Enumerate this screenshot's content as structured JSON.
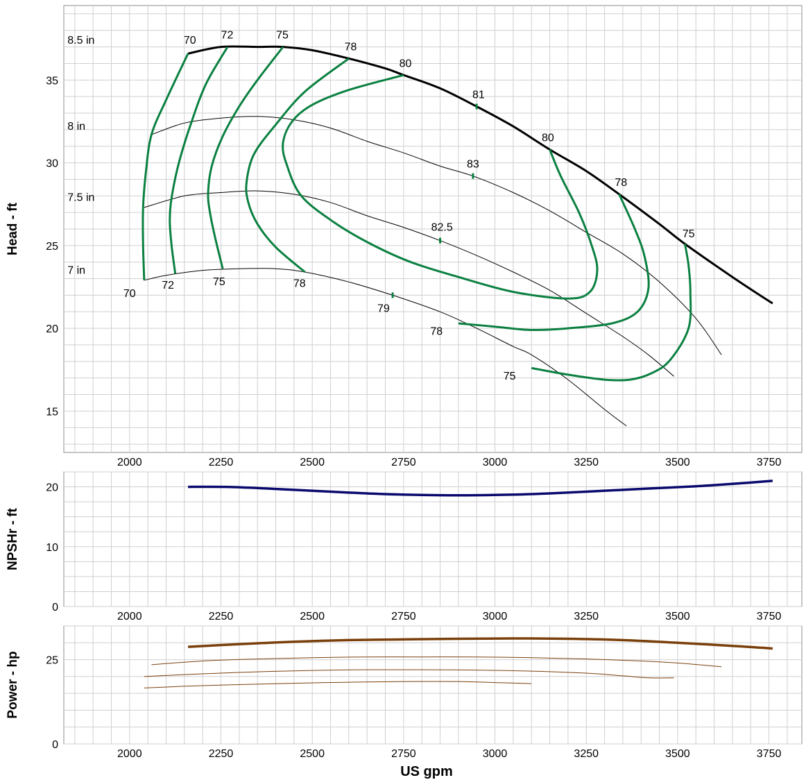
{
  "chart_data": [
    {
      "type": "line",
      "panel": "head",
      "ylabel": "Head - ft",
      "xlim": [
        1820,
        3840
      ],
      "ylim": [
        12.5,
        39.5
      ],
      "xticks": [
        2000,
        2250,
        2500,
        2750,
        3000,
        3250,
        3500,
        3750
      ],
      "yticks": [
        15,
        20,
        25,
        30,
        35
      ],
      "grid": true,
      "impeller_curves": [
        {
          "name": "8.5 in",
          "label_at": [
            1830,
            37.2
          ],
          "points": [
            [
              2160,
              36.6
            ],
            [
              2250,
              37.0
            ],
            [
              2350,
              37.0
            ],
            [
              2420,
              37.0
            ],
            [
              2500,
              36.8
            ],
            [
              2600,
              36.3
            ],
            [
              2700,
              35.7
            ],
            [
              2750,
              35.3
            ],
            [
              2850,
              34.5
            ],
            [
              2950,
              33.4
            ],
            [
              3050,
              32.2
            ],
            [
              3150,
              30.8
            ],
            [
              3250,
              29.5
            ],
            [
              3340,
              28.1
            ],
            [
              3450,
              26.3
            ],
            [
              3520,
              25.1
            ],
            [
              3650,
              23.1
            ],
            [
              3760,
              21.5
            ]
          ]
        },
        {
          "name": "8 in",
          "label_at": [
            1830,
            32.0
          ],
          "points": [
            [
              2060,
              31.7
            ],
            [
              2150,
              32.4
            ],
            [
              2250,
              32.7
            ],
            [
              2350,
              32.8
            ],
            [
              2450,
              32.6
            ],
            [
              2550,
              32.1
            ],
            [
              2650,
              31.3
            ],
            [
              2750,
              30.6
            ],
            [
              2850,
              29.8
            ],
            [
              2940,
              29.2
            ],
            [
              3050,
              28.2
            ],
            [
              3150,
              27.1
            ],
            [
              3250,
              25.8
            ],
            [
              3350,
              24.5
            ],
            [
              3450,
              22.8
            ],
            [
              3550,
              20.6
            ],
            [
              3620,
              18.4
            ]
          ]
        },
        {
          "name": "7.5 in",
          "label_at": [
            1830,
            27.7
          ],
          "points": [
            [
              2040,
              27.3
            ],
            [
              2150,
              28.0
            ],
            [
              2250,
              28.2
            ],
            [
              2350,
              28.3
            ],
            [
              2450,
              28.1
            ],
            [
              2550,
              27.6
            ],
            [
              2650,
              26.8
            ],
            [
              2750,
              26.1
            ],
            [
              2850,
              25.3
            ],
            [
              2950,
              24.4
            ],
            [
              3050,
              23.4
            ],
            [
              3150,
              22.3
            ],
            [
              3250,
              20.9
            ],
            [
              3350,
              19.5
            ],
            [
              3420,
              18.4
            ],
            [
              3490,
              17.1
            ]
          ]
        },
        {
          "name": "7 in",
          "label_at": [
            1830,
            23.3
          ],
          "points": [
            [
              2040,
              22.9
            ],
            [
              2100,
              23.2
            ],
            [
              2200,
              23.5
            ],
            [
              2300,
              23.6
            ],
            [
              2400,
              23.6
            ],
            [
              2480,
              23.4
            ],
            [
              2600,
              22.8
            ],
            [
              2720,
              22.0
            ],
            [
              2850,
              21.0
            ],
            [
              2950,
              20.0
            ],
            [
              3050,
              18.9
            ],
            [
              3100,
              18.4
            ],
            [
              3200,
              16.9
            ],
            [
              3300,
              15.1
            ],
            [
              3360,
              14.1
            ]
          ]
        }
      ],
      "efficiency_curves": [
        {
          "value": "70",
          "points": [
            [
              2040,
              22.9
            ],
            [
              2037,
              25.0
            ],
            [
              2037,
              27.3
            ],
            [
              2045,
              29.5
            ],
            [
              2060,
              31.7
            ],
            [
              2100,
              33.8
            ],
            [
              2160,
              36.6
            ]
          ]
        },
        {
          "value": "72",
          "points": [
            [
              2125,
              23.3
            ],
            [
              2115,
              25.0
            ],
            [
              2110,
              26.5
            ],
            [
              2115,
              27.9
            ],
            [
              2135,
              30.0
            ],
            [
              2170,
              32.5
            ],
            [
              2210,
              34.8
            ],
            [
              2268,
              37.0
            ]
          ]
        },
        {
          "value": "75",
          "points": [
            [
              2255,
              23.6
            ],
            [
              2235,
              25.4
            ],
            [
              2220,
              27.0
            ],
            [
              2215,
              28.2
            ],
            [
              2225,
              29.8
            ],
            [
              2255,
              31.6
            ],
            [
              2300,
              33.4
            ],
            [
              2350,
              35.0
            ],
            [
              2420,
              37.0
            ]
          ]
        },
        {
          "value": "78",
          "points": [
            [
              2480,
              23.4
            ],
            [
              2400,
              24.9
            ],
            [
              2350,
              26.3
            ],
            [
              2325,
              27.6
            ],
            [
              2320,
              28.8
            ],
            [
              2340,
              30.5
            ],
            [
              2400,
              32.3
            ],
            [
              2480,
              34.3
            ],
            [
              2600,
              36.3
            ]
          ]
        },
        {
          "value": "80",
          "points": [
            [
              2750,
              35.3
            ],
            [
              2600,
              34.4
            ],
            [
              2500,
              33.5
            ],
            [
              2445,
              32.5
            ],
            [
              2420,
              31.2
            ],
            [
              2430,
              29.9
            ],
            [
              2470,
              28.0
            ],
            [
              2560,
              26.4
            ],
            [
              2660,
              25.1
            ],
            [
              2770,
              24.0
            ],
            [
              2900,
              23.1
            ],
            [
              3050,
              22.2
            ],
            [
              3200,
              21.8
            ],
            [
              3260,
              22.2
            ],
            [
              3280,
              23.5
            ],
            [
              3265,
              25.0
            ],
            [
              3230,
              27.0
            ],
            [
              3180,
              29.2
            ],
            [
              3150,
              30.8
            ]
          ]
        },
        {
          "value": "78",
          "points": [
            [
              2900,
              20.3
            ],
            [
              3000,
              20.1
            ],
            [
              3100,
              19.9
            ],
            [
              3200,
              20.0
            ],
            [
              3320,
              20.3
            ],
            [
              3390,
              21.0
            ],
            [
              3420,
              22.4
            ],
            [
              3410,
              24.3
            ],
            [
              3385,
              25.9
            ],
            [
              3340,
              28.1
            ]
          ]
        },
        {
          "value": "75",
          "points": [
            [
              3100,
              17.6
            ],
            [
              3200,
              17.2
            ],
            [
              3300,
              16.9
            ],
            [
              3370,
              16.9
            ],
            [
              3430,
              17.3
            ],
            [
              3480,
              18.1
            ],
            [
              3530,
              20.0
            ],
            [
              3535,
              22.2
            ],
            [
              3530,
              23.8
            ],
            [
              3520,
              25.1
            ]
          ]
        }
      ],
      "annotations": [
        {
          "text": "70",
          "x": 2165,
          "y": 37.2
        },
        {
          "text": "72",
          "x": 2267,
          "y": 37.5
        },
        {
          "text": "75",
          "x": 2418,
          "y": 37.5
        },
        {
          "text": "78",
          "x": 2605,
          "y": 36.8
        },
        {
          "text": "80",
          "x": 2755,
          "y": 35.8
        },
        {
          "text": "81",
          "x": 2955,
          "y": 33.9
        },
        {
          "text": "80",
          "x": 3145,
          "y": 31.3
        },
        {
          "text": "83",
          "x": 2940,
          "y": 29.7
        },
        {
          "text": "78",
          "x": 3345,
          "y": 28.6
        },
        {
          "text": "82.5",
          "x": 2855,
          "y": 25.9
        },
        {
          "text": "75",
          "x": 3530,
          "y": 25.5
        },
        {
          "text": "70",
          "x": 2000,
          "y": 21.9
        },
        {
          "text": "72",
          "x": 2105,
          "y": 22.4
        },
        {
          "text": "75",
          "x": 2245,
          "y": 22.6
        },
        {
          "text": "78",
          "x": 2465,
          "y": 22.5
        },
        {
          "text": "79",
          "x": 2695,
          "y": 21.0
        },
        {
          "text": "78",
          "x": 2840,
          "y": 19.6
        },
        {
          "text": "75",
          "x": 3040,
          "y": 16.9
        }
      ],
      "markers": [
        [
          2950,
          33.4
        ],
        [
          2940,
          29.2
        ],
        [
          2850,
          25.3
        ],
        [
          2720,
          22.0
        ]
      ]
    },
    {
      "type": "line",
      "panel": "npshr",
      "ylabel": "NPSHr - ft",
      "xlim": [
        1820,
        3840
      ],
      "ylim": [
        0,
        22.5
      ],
      "xticks": [
        2000,
        2250,
        2500,
        2750,
        3000,
        3250,
        3500,
        3750
      ],
      "yticks": [
        0,
        10,
        20
      ],
      "grid": true,
      "color": "#0a0a6e",
      "points": [
        [
          2160,
          20.0
        ],
        [
          2260,
          20.0
        ],
        [
          2350,
          19.8
        ],
        [
          2450,
          19.5
        ],
        [
          2550,
          19.2
        ],
        [
          2650,
          18.9
        ],
        [
          2750,
          18.7
        ],
        [
          2850,
          18.6
        ],
        [
          2950,
          18.6
        ],
        [
          3050,
          18.7
        ],
        [
          3150,
          18.9
        ],
        [
          3250,
          19.2
        ],
        [
          3350,
          19.5
        ],
        [
          3450,
          19.8
        ],
        [
          3550,
          20.1
        ],
        [
          3650,
          20.5
        ],
        [
          3760,
          21.0
        ]
      ]
    },
    {
      "type": "line",
      "panel": "power",
      "ylabel": "Power - hp",
      "xlabel": "US gpm",
      "xlim": [
        1820,
        3840
      ],
      "ylim": [
        0,
        35
      ],
      "xticks": [
        2000,
        2250,
        2500,
        2750,
        3000,
        3250,
        3500,
        3750
      ],
      "yticks": [
        0,
        25
      ],
      "grid": true,
      "color": "#7a3f0a",
      "series": [
        {
          "points": [
            [
              2160,
              28.8
            ],
            [
              2300,
              29.6
            ],
            [
              2450,
              30.3
            ],
            [
              2600,
              30.8
            ],
            [
              2750,
              31.0
            ],
            [
              2900,
              31.2
            ],
            [
              3050,
              31.3
            ],
            [
              3200,
              31.2
            ],
            [
              3350,
              30.8
            ],
            [
              3500,
              30.0
            ],
            [
              3650,
              29.1
            ],
            [
              3760,
              28.3
            ]
          ]
        },
        {
          "points": [
            [
              2060,
              23.5
            ],
            [
              2200,
              24.6
            ],
            [
              2350,
              25.2
            ],
            [
              2500,
              25.6
            ],
            [
              2650,
              25.8
            ],
            [
              2800,
              25.8
            ],
            [
              2950,
              25.8
            ],
            [
              3100,
              25.6
            ],
            [
              3250,
              25.2
            ],
            [
              3400,
              24.6
            ],
            [
              3500,
              24.0
            ],
            [
              3620,
              22.9
            ]
          ]
        },
        {
          "points": [
            [
              2040,
              20.0
            ],
            [
              2200,
              20.8
            ],
            [
              2350,
              21.4
            ],
            [
              2500,
              21.8
            ],
            [
              2650,
              22.0
            ],
            [
              2800,
              22.0
            ],
            [
              2950,
              21.9
            ],
            [
              3100,
              21.6
            ],
            [
              3250,
              21.0
            ],
            [
              3350,
              20.2
            ],
            [
              3420,
              19.6
            ],
            [
              3490,
              19.6
            ]
          ]
        },
        {
          "points": [
            [
              2040,
              16.6
            ],
            [
              2150,
              17.1
            ],
            [
              2300,
              17.6
            ],
            [
              2450,
              18.0
            ],
            [
              2600,
              18.3
            ],
            [
              2750,
              18.5
            ],
            [
              2900,
              18.5
            ],
            [
              3000,
              18.2
            ],
            [
              3100,
              17.9
            ]
          ]
        }
      ]
    }
  ]
}
